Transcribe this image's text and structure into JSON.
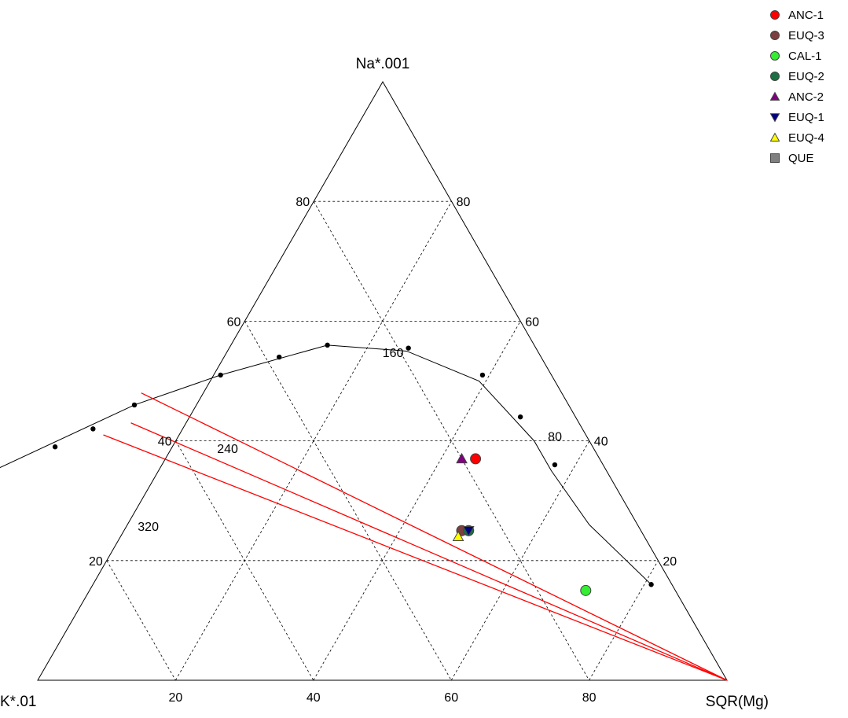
{
  "chart_data": {
    "type": "ternary",
    "vertices": {
      "top": "Na*.001",
      "left": "K*.01",
      "right": "SQR(Mg)"
    },
    "grid": {
      "on": true,
      "step": 20,
      "style": "dashed"
    },
    "tick_labels": {
      "left_edge": [
        "20",
        "40",
        "60",
        "80"
      ],
      "right_edge": [
        "80",
        "60",
        "40",
        "20"
      ],
      "bottom_edge": [
        "80",
        "60",
        "40",
        "20"
      ]
    },
    "curve_labels": [
      {
        "text": "80",
        "at_percent": {
          "na": 40,
          "mg": 54
        }
      },
      {
        "text": "160",
        "at_percent": {
          "na": 54,
          "mg": 23
        }
      },
      {
        "text": "240",
        "at_percent": {
          "na": 38,
          "mg": 7
        }
      },
      {
        "text": "320",
        "at_percent": {
          "na": 25,
          "mg": 2
        }
      }
    ],
    "equilibrium_curve": {
      "points_percent": [
        {
          "na": 16,
          "mg": 81
        },
        {
          "na": 26,
          "mg": 67
        },
        {
          "na": 35,
          "mg": 57
        },
        {
          "na": 40,
          "mg": 52
        },
        {
          "na": 50,
          "mg": 39
        },
        {
          "na": 55,
          "mg": 26
        },
        {
          "na": 56,
          "mg": 14
        },
        {
          "na": 51,
          "mg": 1
        },
        {
          "na": 46,
          "mg": -9
        },
        {
          "na": 35,
          "mg": -24
        }
      ],
      "dot_points_percent": [
        {
          "na": 16,
          "mg": 81
        },
        {
          "na": 36,
          "mg": 57
        },
        {
          "na": 44,
          "mg": 48
        },
        {
          "na": 51,
          "mg": 39
        },
        {
          "na": 55.5,
          "mg": 26
        },
        {
          "na": 56,
          "mg": 14
        },
        {
          "na": 54,
          "mg": 8
        },
        {
          "na": 51,
          "mg": 1
        },
        {
          "na": 46,
          "mg": -9
        },
        {
          "na": 42,
          "mg": -13
        },
        {
          "na": 39,
          "mg": -17
        },
        {
          "na": 35,
          "mg": -24
        },
        {
          "na": 31,
          "mg": -26
        },
        {
          "na": 27,
          "mg": -28
        },
        {
          "na": 24,
          "mg": -29
        }
      ]
    },
    "rays": [
      {
        "from": {
          "na": 0,
          "mg": 100
        },
        "to": {
          "na": 48,
          "mg": -9
        }
      },
      {
        "from": {
          "na": 0,
          "mg": 100
        },
        "to": {
          "na": 43,
          "mg": -8
        }
      },
      {
        "from": {
          "na": 0,
          "mg": 100
        },
        "to": {
          "na": 41,
          "mg": -11
        }
      }
    ],
    "series": [
      {
        "name": "ANC-1",
        "marker": "circle",
        "color": "#ff0000",
        "na": 37,
        "mg": 45
      },
      {
        "name": "EUQ-3",
        "marker": "circle",
        "color": "#7b3f3f",
        "na": 25,
        "mg": 49
      },
      {
        "name": "CAL-1",
        "marker": "circle",
        "color": "#33ee33",
        "na": 15,
        "mg": 72
      },
      {
        "name": "EUQ-2",
        "marker": "circle",
        "color": "#1a7040",
        "na": 25,
        "mg": 50
      },
      {
        "name": "ANC-2",
        "marker": "triangle-up",
        "color": "#800080",
        "na": 37,
        "mg": 43
      },
      {
        "name": "EUQ-1",
        "marker": "triangle-down",
        "color": "#000080",
        "na": 25,
        "mg": 50
      },
      {
        "name": "EUQ-4",
        "marker": "triangle-up",
        "color": "#ffff00",
        "na": 24,
        "mg": 49
      },
      {
        "name": "QUE",
        "marker": "square",
        "color": "#808080",
        "na": null,
        "mg": null
      }
    ],
    "legend_position": "top-right"
  }
}
